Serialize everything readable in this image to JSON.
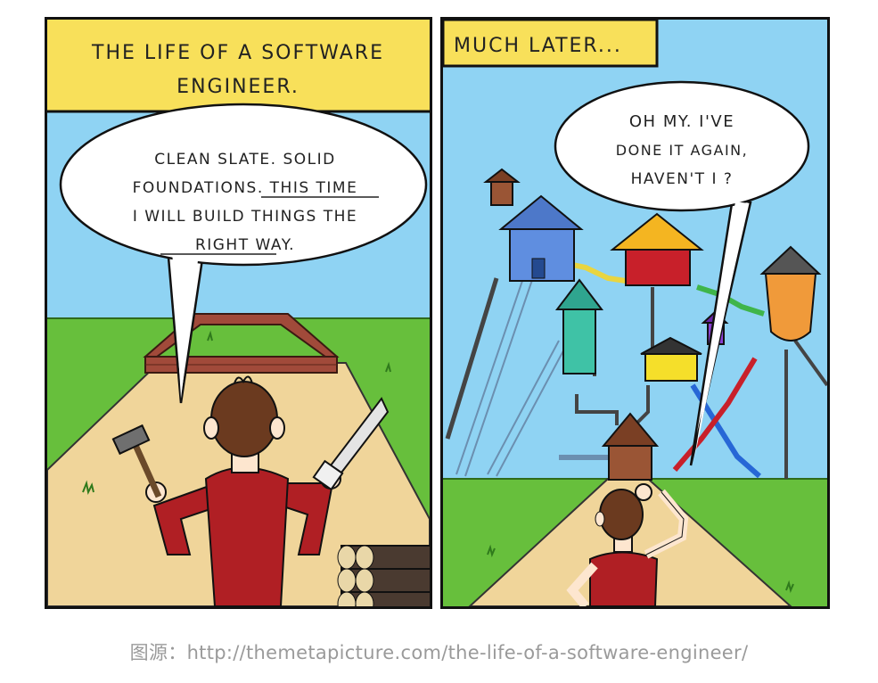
{
  "panels": [
    {
      "caption_line1": "THE LIFE OF A SOFTWARE",
      "caption_line2": "ENGINEER.",
      "bubble_line1": "CLEAN SLATE. SOLID",
      "bubble_line2": "FOUNDATIONS. THIS TIME",
      "bubble_line3": "I WILL BUILD THINGS THE",
      "bubble_line4": "RIGHT WAY."
    },
    {
      "caption": "MUCH LATER...",
      "bubble_line1": "OH MY. I'VE",
      "bubble_line2": "DONE IT AGAIN,",
      "bubble_line3": "HAVEN'T I ?"
    }
  ],
  "source_text": "图源：http://themetapicture.com/the-life-of-a-software-engineer/",
  "colors": {
    "sky": "#8fd3f3",
    "caption_bg": "#f8e05a",
    "grass": "#67bf3c",
    "path": "#f0d59a",
    "shirt": "#b01f24",
    "hair": "#6b3a1f",
    "brick": "#a14a3a"
  }
}
